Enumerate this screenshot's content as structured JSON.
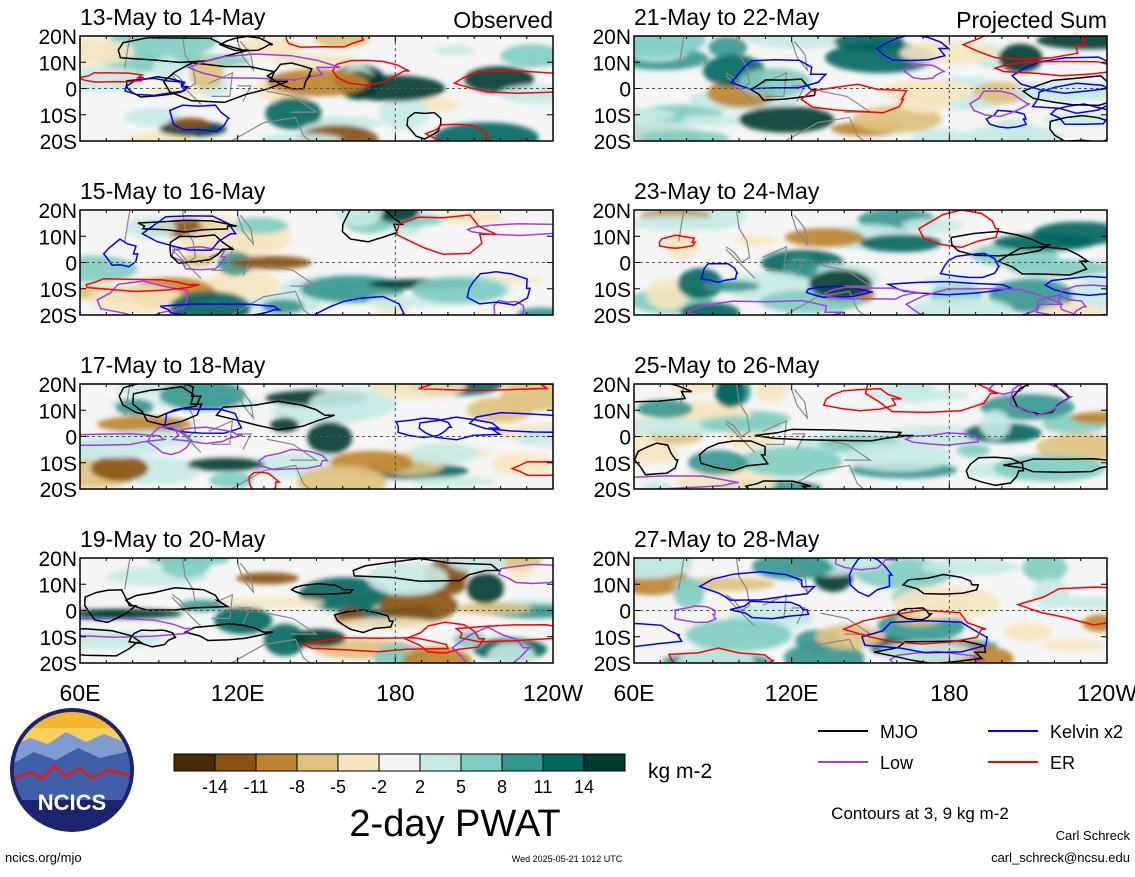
{
  "chart_data": {
    "type": "heatmap",
    "title": "2-day PWAT",
    "units": "kg m-2",
    "contour_note": "Contours at 3, 9 kg m-2",
    "column_labels": [
      "Observed",
      "Projected Sum"
    ],
    "panels": [
      {
        "column": 0,
        "title": "13-May to 14-May",
        "label": "Observed"
      },
      {
        "column": 0,
        "title": "15-May to 16-May"
      },
      {
        "column": 0,
        "title": "17-May to 18-May"
      },
      {
        "column": 0,
        "title": "19-May to 20-May"
      },
      {
        "column": 1,
        "title": "21-May to 22-May",
        "label": "Projected Sum"
      },
      {
        "column": 1,
        "title": "23-May to 24-May"
      },
      {
        "column": 1,
        "title": "25-May to 26-May"
      },
      {
        "column": 1,
        "title": "27-May to 28-May"
      }
    ],
    "x_ticks": [
      "60E",
      "120E",
      "180",
      "120W"
    ],
    "x_tick_lon": [
      60,
      120,
      180,
      240
    ],
    "xlim": [
      60,
      240
    ],
    "y_ticks": [
      "20N",
      "10N",
      "0",
      "10S",
      "20S"
    ],
    "y_tick_lat": [
      20,
      10,
      0,
      -10,
      -20
    ],
    "ylim": [
      -20,
      20
    ],
    "colorbar": {
      "tick_labels": [
        "-14",
        "-11",
        "-8",
        "-5",
        "-2",
        "2",
        "5",
        "8",
        "11",
        "14"
      ],
      "colors": [
        "#4a2a06",
        "#8a520f",
        "#bf842e",
        "#dfc27d",
        "#f6e6bf",
        "#f5f5f5",
        "#c7eae5",
        "#80cdc1",
        "#35978f",
        "#01665e",
        "#003c30"
      ]
    },
    "legend": [
      {
        "label": "MJO",
        "color": "#000000"
      },
      {
        "label": "Kelvin x2",
        "color": "#0000ff"
      },
      {
        "label": "Low",
        "color": "#a040e0"
      },
      {
        "label": "ER",
        "color": "#ff0000"
      }
    ]
  },
  "footer": {
    "logo_text": "NCICS",
    "site": "ncics.org/mjo",
    "timestamp": "Wed 2025-05-21 1012 UTC",
    "author": "Carl Schreck",
    "email": "carl_schreck@ncsu.edu"
  }
}
